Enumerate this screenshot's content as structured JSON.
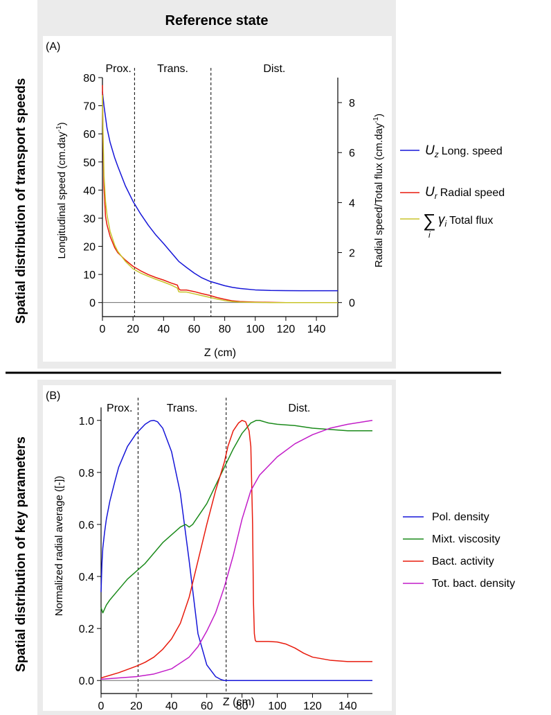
{
  "figure": {
    "column_title": "Reference state",
    "row_label_a": "Spatial distribution of transport speeds",
    "row_label_b": "Spatial distribution of key parameters",
    "colors": {
      "panel_bg": "#ebebeb",
      "blue": "#1515d8",
      "red": "#e81a0c",
      "yellow": "#c8c42a",
      "green": "#1a8a1a",
      "magenta": "#c21cc8"
    }
  },
  "chart_data": [
    {
      "type": "line",
      "panel_label": "(A)",
      "zone_labels": [
        "Prox.",
        "Trans.",
        "Dist."
      ],
      "zone_boundaries": [
        21,
        71
      ],
      "xlabel": "Z (cm)",
      "ylabel": "Longitudinal speed (cm.day",
      "ylabel_sup": "-1",
      "ylabel_end": ")",
      "y2label": "Radial speed/Total flux (cm.day",
      "y2label_sup": "-1",
      "y2label_end": ")",
      "xlim": [
        0,
        154
      ],
      "ylim": [
        -5,
        80
      ],
      "y2lim": [
        -0.5625,
        9
      ],
      "xticks": [
        0,
        20,
        40,
        60,
        80,
        100,
        120,
        140
      ],
      "yticks": [
        0,
        10,
        20,
        30,
        40,
        50,
        60,
        70,
        80
      ],
      "y2ticks": [
        0,
        2,
        4,
        6,
        8
      ],
      "series": [
        {
          "name": "Long. speed",
          "symbol": "U",
          "symbol_sub": "z",
          "color": "blue",
          "axis": "left",
          "x": [
            0,
            1,
            3,
            5,
            8,
            10,
            15,
            20,
            25,
            30,
            35,
            40,
            45,
            50,
            55,
            60,
            65,
            70,
            75,
            80,
            85,
            90,
            100,
            110,
            120,
            130,
            140,
            154
          ],
          "y": [
            75,
            70,
            62,
            57,
            51.5,
            48.5,
            41.5,
            36,
            31.5,
            27.5,
            24,
            21,
            17.8,
            14.6,
            12.5,
            10.5,
            8.8,
            7.6,
            6.8,
            6.0,
            5.4,
            5.0,
            4.5,
            4.3,
            4.25,
            4.2,
            4.2,
            4.2
          ]
        },
        {
          "name": "Radial speed",
          "symbol": "U",
          "symbol_sub": "r",
          "color": "red",
          "axis": "right",
          "x": [
            0,
            0.4,
            1,
            2,
            3,
            5,
            8,
            10,
            15,
            20,
            25,
            30,
            35,
            40,
            45,
            49,
            50,
            51,
            55,
            60,
            65,
            70,
            75,
            80,
            85,
            90,
            100,
            110,
            120,
            154
          ],
          "y": [
            8.7,
            6.5,
            4.6,
            3.45,
            3.1,
            2.65,
            2.2,
            2.0,
            1.7,
            1.45,
            1.27,
            1.12,
            1.0,
            0.9,
            0.78,
            0.7,
            0.55,
            0.5,
            0.5,
            0.44,
            0.36,
            0.29,
            0.2,
            0.13,
            0.07,
            0.04,
            0.02,
            0.01,
            0.0,
            0.0
          ]
        },
        {
          "name": "Total flux",
          "symbol": "∑",
          "symbol_sub": "i",
          "symbol_main": "γ",
          "symbol_main_sub": "i",
          "color": "yellow",
          "axis": "right",
          "x": [
            0,
            0.4,
            1,
            2,
            3,
            5,
            8,
            10,
            15,
            20,
            25,
            30,
            35,
            40,
            45,
            49,
            50,
            51,
            55,
            60,
            65,
            70,
            75,
            80,
            85,
            90,
            100,
            110,
            120,
            154
          ],
          "y": [
            8.3,
            6.8,
            5.1,
            4.05,
            3.5,
            2.85,
            2.3,
            2.05,
            1.65,
            1.35,
            1.18,
            1.05,
            0.93,
            0.82,
            0.7,
            0.58,
            0.43,
            0.42,
            0.42,
            0.35,
            0.28,
            0.21,
            0.14,
            0.08,
            0.04,
            0.02,
            0.01,
            0.0,
            0.0,
            0.0
          ]
        }
      ]
    },
    {
      "type": "line",
      "panel_label": "(B)",
      "zone_labels": [
        "Prox.",
        "Trans.",
        "Dist."
      ],
      "zone_boundaries": [
        21,
        71
      ],
      "xlabel": "Z (cm)",
      "ylabel": "Normalized radial average ([-])",
      "xlim": [
        0,
        154
      ],
      "ylim": [
        -0.05,
        1.05
      ],
      "xticks": [
        0,
        20,
        40,
        60,
        80,
        100,
        120,
        140
      ],
      "yticks": [
        0.0,
        0.2,
        0.4,
        0.6,
        0.8,
        1.0
      ],
      "ytick_labels": [
        "0.0",
        "0.2",
        "0.4",
        "0.6",
        "0.8",
        "1.0"
      ],
      "series": [
        {
          "name": "Pol. density",
          "color": "blue",
          "x": [
            0,
            0.5,
            1,
            2,
            3,
            5,
            8,
            10,
            15,
            20,
            25,
            28,
            30,
            32,
            35,
            40,
            45,
            50,
            55,
            60,
            65,
            68,
            70,
            71,
            154
          ],
          "y": [
            0.34,
            0.45,
            0.51,
            0.57,
            0.62,
            0.69,
            0.77,
            0.82,
            0.9,
            0.95,
            0.985,
            0.998,
            1.0,
            0.995,
            0.97,
            0.88,
            0.72,
            0.46,
            0.18,
            0.06,
            0.015,
            0.004,
            0.0,
            0.0,
            0.0
          ]
        },
        {
          "name": "Mixt. viscosity",
          "color": "green",
          "x": [
            0,
            1,
            3,
            5,
            10,
            15,
            20,
            25,
            30,
            35,
            40,
            45,
            48,
            50,
            52,
            55,
            60,
            65,
            70,
            75,
            80,
            85,
            88,
            90,
            95,
            100,
            110,
            120,
            130,
            140,
            154
          ],
          "y": [
            0.28,
            0.26,
            0.29,
            0.31,
            0.35,
            0.39,
            0.42,
            0.45,
            0.49,
            0.53,
            0.56,
            0.59,
            0.6,
            0.59,
            0.6,
            0.63,
            0.68,
            0.75,
            0.82,
            0.89,
            0.95,
            0.99,
            1.0,
            1.0,
            0.99,
            0.985,
            0.98,
            0.97,
            0.965,
            0.96,
            0.96
          ]
        },
        {
          "name": "Bact. activity",
          "color": "red",
          "x": [
            0,
            10,
            20,
            25,
            30,
            35,
            40,
            45,
            50,
            55,
            60,
            65,
            70,
            72,
            75,
            78,
            80,
            82,
            84,
            85,
            86,
            86.5,
            87,
            87.5,
            88,
            90,
            95,
            100,
            105,
            110,
            115,
            120,
            130,
            140,
            154
          ],
          "y": [
            0.01,
            0.03,
            0.055,
            0.07,
            0.09,
            0.12,
            0.16,
            0.22,
            0.32,
            0.46,
            0.6,
            0.73,
            0.84,
            0.9,
            0.96,
            0.99,
            1.0,
            0.995,
            0.96,
            0.9,
            0.6,
            0.3,
            0.18,
            0.155,
            0.15,
            0.15,
            0.15,
            0.148,
            0.14,
            0.125,
            0.105,
            0.09,
            0.078,
            0.073,
            0.073
          ]
        },
        {
          "name": "Tot. bact. density",
          "color": "magenta",
          "x": [
            0,
            10,
            20,
            30,
            40,
            50,
            55,
            60,
            65,
            70,
            75,
            80,
            85,
            90,
            100,
            110,
            120,
            130,
            140,
            154
          ],
          "y": [
            0.005,
            0.01,
            0.015,
            0.025,
            0.045,
            0.09,
            0.13,
            0.19,
            0.26,
            0.36,
            0.48,
            0.62,
            0.73,
            0.79,
            0.86,
            0.91,
            0.945,
            0.97,
            0.985,
            1.0
          ]
        }
      ]
    }
  ]
}
